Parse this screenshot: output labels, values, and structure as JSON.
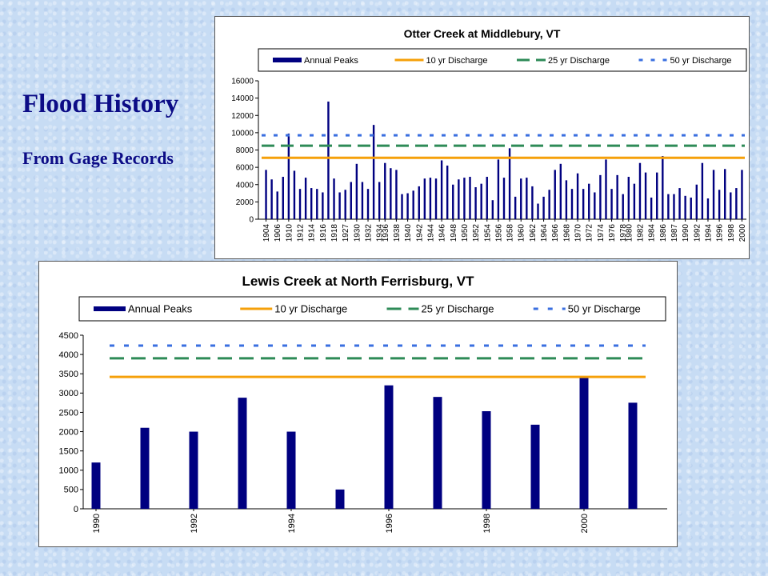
{
  "slide": {
    "title": "Flood History",
    "subtitle": "From Gage Records",
    "background_color": "#c7dcf4",
    "title_color": "#0c0c86"
  },
  "colors": {
    "bars": "#000080",
    "ten_year": "#f5a00a",
    "twentyfive_year": "#2e8b57",
    "fifty_year": "#3a6fe0"
  },
  "chart_data": [
    {
      "type": "bar",
      "title": "Otter Creek at Middlebury, VT",
      "legend": [
        "Annual Peaks",
        "10 yr Discharge",
        "25 yr Discharge",
        "50 yr Discharge"
      ],
      "legend_position": "top",
      "ylim": [
        0,
        16000
      ],
      "yticks": [
        0,
        2000,
        4000,
        6000,
        8000,
        10000,
        12000,
        14000,
        16000
      ],
      "xtick_labels": [
        "1904",
        "1906",
        "1910",
        "1912",
        "1914",
        "1916",
        "1918",
        "1927",
        "1930",
        "1932",
        "1934",
        "1936",
        "1938",
        "1940",
        "1942",
        "1944",
        "1946",
        "1948",
        "1950",
        "1952",
        "1954",
        "1956",
        "1958",
        "1960",
        "1962",
        "1964",
        "1966",
        "1968",
        "1970",
        "1972",
        "1974",
        "1976",
        "1978",
        "1980",
        "1982",
        "1984",
        "1986",
        "1987",
        "1990",
        "1992",
        "1994",
        "1996",
        "1998",
        "2000"
      ],
      "grid": false,
      "series": [
        {
          "name": "Annual Peaks",
          "values": [
            5700,
            4600,
            3200,
            4900,
            9900,
            5600,
            3500,
            4800,
            3600,
            3500,
            3100,
            13600,
            4700,
            3100,
            3400,
            4300,
            6400,
            4300,
            3500,
            10900,
            4300,
            6500,
            5900,
            5700,
            2900,
            3000,
            3300,
            3800,
            4700,
            4800,
            4700,
            6800,
            6200,
            4000,
            4600,
            4800,
            4900,
            3700,
            4100,
            4900,
            2200,
            6900,
            4800,
            8200,
            2600,
            4700,
            4800,
            3800,
            1800,
            2600,
            3400,
            5700,
            6400,
            4500,
            3500,
            5300,
            3500,
            4100,
            3100,
            5100,
            6900,
            3500,
            5100,
            2900,
            4900,
            4100,
            6500,
            5400,
            2500,
            5400,
            7300,
            2900,
            2900,
            3600,
            2700,
            2500,
            4000,
            6500,
            2400,
            5700,
            3400,
            5800,
            3100,
            3600,
            5700
          ]
        },
        {
          "name": "10 yr Discharge",
          "value": 7100
        },
        {
          "name": "25 yr Discharge",
          "value": 8500
        },
        {
          "name": "50 yr Discharge",
          "value": 9700
        }
      ]
    },
    {
      "type": "bar",
      "title": "Lewis Creek at North Ferrisburg, VT",
      "legend": [
        "Annual Peaks",
        "10 yr Discharge",
        "25 yr Discharge",
        "50 yr Discharge"
      ],
      "legend_position": "top",
      "ylim": [
        0,
        4500
      ],
      "yticks": [
        0,
        500,
        1000,
        1500,
        2000,
        2500,
        3000,
        3500,
        4000,
        4500
      ],
      "xtick_labels": [
        "1990",
        "1992",
        "1994",
        "1996",
        "1998",
        "2000"
      ],
      "grid": false,
      "series": [
        {
          "name": "Annual Peaks",
          "x": [
            1990,
            1991,
            1992,
            1993,
            1994,
            1995,
            1996,
            1997,
            1998,
            1999,
            2000,
            2001
          ],
          "values": [
            1200,
            2100,
            2000,
            2880,
            2000,
            500,
            3200,
            2900,
            2530,
            2180,
            3400,
            2750
          ]
        },
        {
          "name": "10 yr Discharge",
          "value": 3420
        },
        {
          "name": "25 yr Discharge",
          "value": 3900
        },
        {
          "name": "50 yr Discharge",
          "value": 4230
        }
      ]
    }
  ]
}
